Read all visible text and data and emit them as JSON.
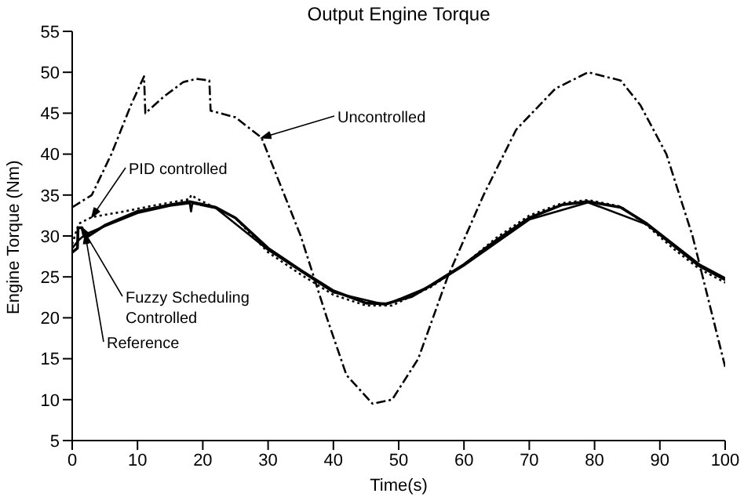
{
  "chart_data": {
    "type": "line",
    "title": "Output Engine Torque",
    "xlabel": "Time(s)",
    "ylabel": "Engine Torque (Nm)",
    "xlim": [
      0,
      100
    ],
    "ylim": [
      5,
      55
    ],
    "xticks": [
      0,
      10,
      20,
      30,
      40,
      50,
      60,
      70,
      80,
      90,
      100
    ],
    "yticks": [
      5,
      10,
      15,
      20,
      25,
      30,
      35,
      40,
      45,
      50,
      55
    ],
    "annotations": [
      "Uncontrolled",
      "PID controlled",
      "Fuzzy Scheduling Controlled",
      "Reference"
    ],
    "marker": "none",
    "series": [
      {
        "color": "#000000",
        "line_style": "dashed",
        "x": [
          0,
          3,
          6,
          9,
          11,
          11.2,
          14,
          17,
          19,
          21,
          21.2,
          25,
          29,
          32,
          35,
          39,
          42,
          46,
          49,
          53,
          57.5,
          63,
          68,
          74,
          79,
          84,
          87,
          91,
          95,
          97.5,
          100
        ],
        "values": [
          33.5,
          35,
          40,
          46,
          49.5,
          45,
          47,
          48.8,
          49.2,
          49,
          45.3,
          44.5,
          42,
          36,
          30,
          20,
          13,
          9.5,
          10,
          15,
          25,
          35,
          43,
          48,
          50,
          49,
          46,
          40,
          30,
          22,
          14
        ]
      },
      {
        "color": "#000000",
        "line_style": "dotted",
        "x": [
          0,
          1,
          3,
          8,
          13,
          18,
          18.2,
          19,
          25,
          30,
          35,
          40,
          45,
          49,
          55,
          60,
          65,
          70,
          75,
          79,
          84,
          88,
          92,
          96,
          100
        ],
        "values": [
          29,
          31.5,
          32.3,
          33,
          33.8,
          34.5,
          35,
          34.6,
          32.2,
          28,
          25.3,
          22.8,
          21.5,
          21.5,
          23.8,
          26.5,
          29.8,
          32.5,
          34,
          34.4,
          33.6,
          31.3,
          28.5,
          26,
          24.3
        ]
      },
      {
        "color": "#000000",
        "line_style": "solid",
        "x": [
          0,
          0.8,
          0.9,
          1.5,
          1.8,
          2.5,
          5,
          10,
          15,
          18,
          22,
          25,
          30,
          35,
          40,
          45,
          48,
          52,
          55,
          60,
          65,
          70,
          75,
          79,
          84,
          88,
          92,
          96,
          100
        ],
        "values": [
          28,
          28.5,
          31,
          31,
          30,
          30,
          31.3,
          33,
          33.8,
          34.2,
          33.5,
          32.2,
          28.5,
          25.8,
          23.3,
          21.8,
          21.7,
          22.6,
          24,
          26.5,
          29.5,
          32.2,
          33.8,
          34.2,
          33.5,
          31.5,
          29,
          26.5,
          24.8
        ]
      },
      {
        "color": "#000000",
        "line_style": "solid",
        "x": [
          0,
          1,
          2,
          5,
          10,
          15,
          18,
          18.2,
          18.4,
          22,
          30,
          40,
          48,
          55,
          60,
          70,
          79,
          88,
          96,
          100
        ],
        "values": [
          28.5,
          29.5,
          30.2,
          31.2,
          32.8,
          33.7,
          34,
          33,
          34,
          33.4,
          28.3,
          23.1,
          21.6,
          23.9,
          26.4,
          32,
          34.1,
          31.4,
          26.3,
          24.6
        ]
      }
    ]
  }
}
